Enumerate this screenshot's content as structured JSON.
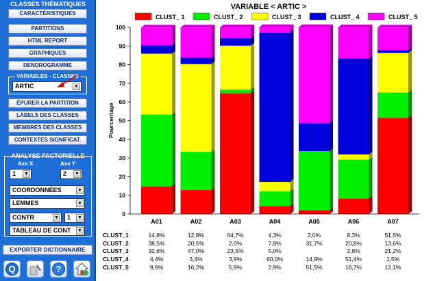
{
  "sidebar": {
    "classes_title": "CLASSES THÉMATIQUES",
    "buttons": [
      "CARACTÉRISTIQUES",
      "PARTITIONS",
      "HTML REPORT",
      "GRAPHIQUES",
      "DENDROGRAMME"
    ],
    "variables_label": "VARIABLES - CLASSES",
    "variable_select": "ARTIC",
    "buttons2": [
      "ÉPURER LA PARTITION",
      "LABELS DES CLASSES",
      "MEMBRES DES CLASSES",
      "CONTEXTES SIGNIFICAT."
    ],
    "analyse_title": "ANALYSE FACTORIELLE",
    "axe_x_label": "Axe X",
    "axe_y_label": "Axe Y",
    "axe_x_value": "1",
    "axe_y_value": "2",
    "select_coord": "COORDONNÉES",
    "select_lemmes": "LEMMES",
    "select_contr": "CONTR",
    "select_contr_num": "1",
    "select_tableau": "TABLEAU DE CONT",
    "export_label": "EXPORTER DICTIONNAIRE",
    "tools": [
      "help-q-icon",
      "cursor-tool-icon",
      "help-icon",
      "home-icon"
    ]
  },
  "colors": {
    "CLUST_1": "#ff0000",
    "CLUST_2": "#00ee00",
    "CLUST_3": "#ffff00",
    "CLUST_4": "#0000dd",
    "CLUST_5": "#ff00ff"
  },
  "chart_data": {
    "type": "bar",
    "title": "VARIABLE < ARTIC >",
    "ylabel": "Pourcentage",
    "ylim": [
      0,
      100
    ],
    "yticks": [
      "0",
      "10",
      "20",
      "30",
      "40",
      "50",
      "60",
      "70",
      "80",
      "90",
      "100"
    ],
    "categories": [
      "A01",
      "A02",
      "A03",
      "A04",
      "A05",
      "A06",
      "A07"
    ],
    "legend_position": "top",
    "series": [
      {
        "name": "CLUST_1",
        "values": [
          14.8,
          12.8,
          64.7,
          4.3,
          2.0,
          8.3,
          51.5
        ],
        "labels": [
          "14,8%",
          "12,8%",
          "64,7%",
          "4,3%",
          "2,0%",
          "8,3%",
          "51,5%"
        ]
      },
      {
        "name": "CLUST_2",
        "values": [
          38.5,
          20.5,
          2.0,
          7.9,
          31.7,
          20.8,
          13.6
        ],
        "labels": [
          "38,5%",
          "20,5%",
          "2,0%",
          "7,9%",
          "31,7%",
          "20,8%",
          "13,6%"
        ]
      },
      {
        "name": "CLUST_3",
        "values": [
          32.6,
          47.0,
          23.5,
          5.0,
          0,
          2.8,
          21.2
        ],
        "labels": [
          "32,6%",
          "47,0%",
          "23,5%",
          "5,0%",
          "",
          "2,8%",
          "21,2%"
        ]
      },
      {
        "name": "CLUST_4",
        "values": [
          4.4,
          3.4,
          3.9,
          80.0,
          14.9,
          51.4,
          1.5
        ],
        "labels": [
          "4,4%",
          "3,4%",
          "3,9%",
          "80,0%",
          "14,9%",
          "51,4%",
          "1,5%"
        ]
      },
      {
        "name": "CLUST_5",
        "values": [
          9.6,
          16.2,
          5.9,
          2.9,
          51.5,
          16.7,
          12.1
        ],
        "labels": [
          "9,6%",
          "16,2%",
          "5,9%",
          "2,9%",
          "51,5%",
          "16,7%",
          "12,1%"
        ]
      }
    ]
  }
}
